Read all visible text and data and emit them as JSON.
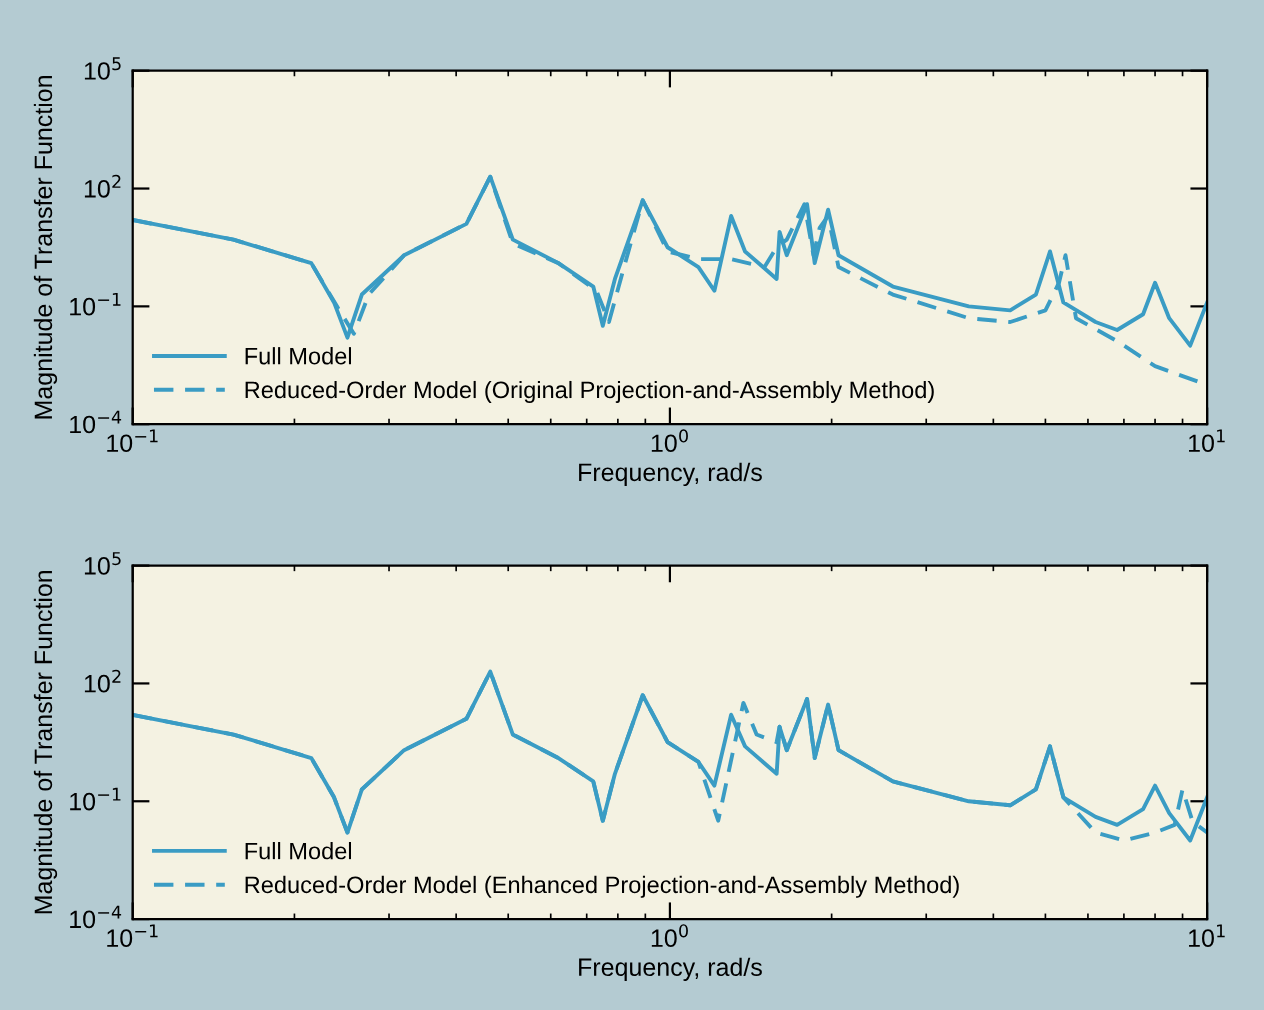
{
  "chart_data": [
    {
      "type": "line",
      "xlabel": "Frequency, rad/s",
      "ylabel": "Magnitude of Transfer Function",
      "log": "xy",
      "grid": false,
      "legend": "bottom left",
      "xlim": [
        0.1,
        10
      ],
      "ylim": [
        0.0001,
        100000
      ],
      "xticks": [
        {
          "value": 0.1,
          "label": "10$^{−1}$"
        },
        {
          "value": 1,
          "label": "10$^{0}$"
        },
        {
          "value": 10,
          "label": "10$^{1}$"
        }
      ],
      "yticks": [
        {
          "value": 0.0001,
          "label": "10$^{−4}$"
        },
        {
          "value": 0.1,
          "label": "10$^{−1}$"
        },
        {
          "value": 100,
          "label": "10$^{2}$"
        },
        {
          "value": 100000,
          "label": "10$^{5}$"
        }
      ],
      "series": [
        {
          "name": "Full Model",
          "color": "#3a9cc4",
          "line_style": "solid",
          "x": [
            0.1,
            0.154,
            0.215,
            0.237,
            0.251,
            0.267,
            0.32,
            0.418,
            0.463,
            0.51,
            0.62,
            0.72,
            0.75,
            0.79,
            0.89,
            0.99,
            1.13,
            1.21,
            1.3,
            1.38,
            1.58,
            1.6,
            1.65,
            1.8,
            1.86,
            1.97,
            2.06,
            2.6,
            3.6,
            4.3,
            4.8,
            5.1,
            5.4,
            6.2,
            6.8,
            7.6,
            8.0,
            8.5,
            9.3,
            10
          ],
          "values": [
            15.8,
            5,
            1.26,
            0.126,
            0.016,
            0.2,
            2,
            12.6,
            200,
            5,
            1.26,
            0.32,
            0.032,
            0.5,
            50,
            3.2,
            1,
            0.25,
            20,
            2.5,
            0.5,
            7.9,
            2,
            40,
            1.26,
            29,
            2,
            0.32,
            0.1,
            0.079,
            0.2,
            2.5,
            0.126,
            0.04,
            0.025,
            0.063,
            0.4,
            0.05,
            0.01,
            0.126
          ]
        },
        {
          "name": "Reduced-Order Model (Original Projection-and-Assembly Method)",
          "color": "#3a9cc4",
          "line_style": "dashed",
          "x": [
            0.1,
            0.154,
            0.215,
            0.24,
            0.258,
            0.275,
            0.32,
            0.418,
            0.463,
            0.51,
            0.62,
            0.73,
            0.77,
            0.81,
            0.89,
            0.99,
            1.13,
            1.3,
            1.5,
            1.58,
            1.65,
            1.78,
            1.85,
            1.9,
            1.97,
            2.06,
            2.6,
            3.6,
            4.3,
            5.0,
            5.3,
            5.45,
            5.7,
            6.8,
            8.0,
            10
          ],
          "values": [
            15.8,
            5,
            1.26,
            0.1,
            0.02,
            0.2,
            2,
            12.6,
            200,
            4,
            1.26,
            0.25,
            0.04,
            0.5,
            50,
            2.5,
            1.6,
            1.6,
            1.0,
            3.2,
            5,
            40,
            2,
            10,
            20,
            1.0,
            0.2,
            0.05,
            0.04,
            0.079,
            0.4,
            2,
            0.05,
            0.013,
            0.003,
            0.001
          ]
        }
      ]
    },
    {
      "type": "line",
      "xlabel": "Frequency, rad/s",
      "ylabel": "Magnitude of Transfer Function",
      "log": "xy",
      "grid": false,
      "legend": "bottom left",
      "xlim": [
        0.1,
        10
      ],
      "ylim": [
        0.0001,
        100000
      ],
      "xticks": [
        {
          "value": 0.1,
          "label": "10$^{−1}$"
        },
        {
          "value": 1,
          "label": "10$^{0}$"
        },
        {
          "value": 10,
          "label": "10$^{1}$"
        }
      ],
      "yticks": [
        {
          "value": 0.0001,
          "label": "10$^{−4}$"
        },
        {
          "value": 0.1,
          "label": "10$^{−1}$"
        },
        {
          "value": 100,
          "label": "10$^{2}$"
        },
        {
          "value": 100000,
          "label": "10$^{5}$"
        }
      ],
      "series": [
        {
          "name": "Full Model",
          "color": "#3a9cc4",
          "line_style": "solid",
          "x": [
            0.1,
            0.154,
            0.215,
            0.237,
            0.251,
            0.267,
            0.32,
            0.418,
            0.463,
            0.51,
            0.62,
            0.72,
            0.75,
            0.79,
            0.89,
            0.99,
            1.13,
            1.21,
            1.3,
            1.38,
            1.58,
            1.6,
            1.65,
            1.8,
            1.86,
            1.97,
            2.06,
            2.6,
            3.6,
            4.3,
            4.8,
            5.1,
            5.4,
            6.2,
            6.8,
            7.6,
            8.0,
            8.5,
            9.3,
            10
          ],
          "values": [
            15.8,
            5,
            1.26,
            0.126,
            0.016,
            0.2,
            2,
            12.6,
            200,
            5,
            1.26,
            0.32,
            0.032,
            0.5,
            50,
            3.2,
            1,
            0.25,
            16,
            2.5,
            0.5,
            7.9,
            2,
            40,
            1.26,
            29,
            2,
            0.32,
            0.1,
            0.079,
            0.2,
            2.5,
            0.126,
            0.04,
            0.025,
            0.063,
            0.25,
            0.05,
            0.01,
            0.126
          ]
        },
        {
          "name": "Reduced-Order Model (Enhanced Projection-and-Assembly Method)",
          "color": "#3a9cc4",
          "line_style": "dashed",
          "x": [
            0.1,
            0.154,
            0.215,
            0.237,
            0.251,
            0.267,
            0.32,
            0.418,
            0.463,
            0.51,
            0.62,
            0.72,
            0.75,
            0.79,
            0.89,
            0.99,
            1.13,
            1.23,
            1.37,
            1.45,
            1.58,
            1.6,
            1.65,
            1.8,
            1.86,
            1.97,
            2.06,
            2.6,
            3.6,
            4.3,
            4.8,
            5.1,
            5.4,
            6.2,
            7.0,
            8.0,
            8.7,
            9.0,
            9.4,
            10
          ],
          "values": [
            15.8,
            5,
            1.26,
            0.126,
            0.016,
            0.2,
            2,
            12.6,
            200,
            5,
            1.26,
            0.32,
            0.032,
            0.5,
            50,
            3.2,
            1,
            0.032,
            32,
            5,
            3.2,
            7.9,
            2,
            40,
            1.26,
            29,
            2,
            0.32,
            0.1,
            0.079,
            0.2,
            2.5,
            0.126,
            0.016,
            0.01,
            0.016,
            0.025,
            0.2,
            0.03,
            0.016
          ]
        }
      ]
    }
  ]
}
